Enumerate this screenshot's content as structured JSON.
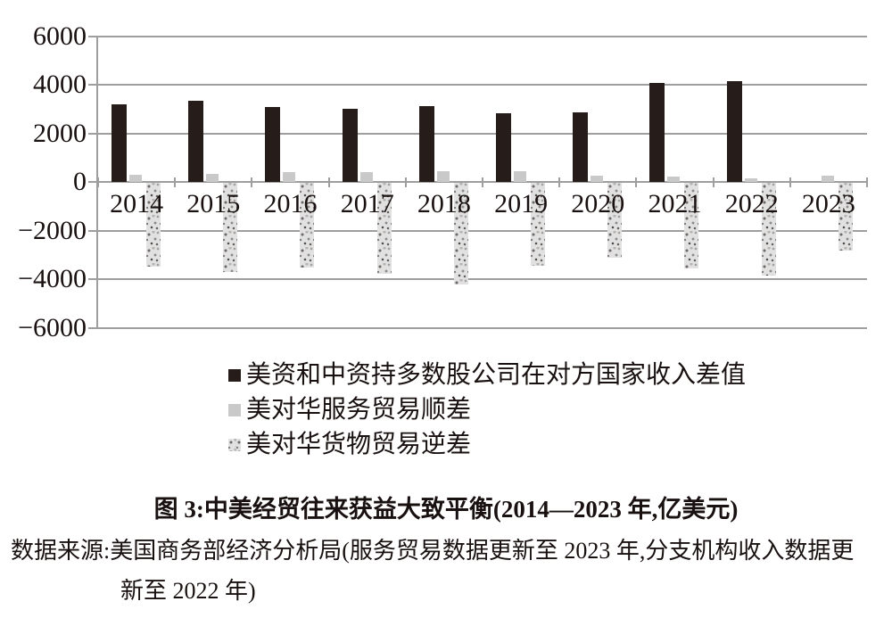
{
  "chart_data": {
    "type": "bar",
    "title": "图 3:中美经贸往来获益大致平衡(2014—2023 年,亿美元)",
    "unit": "亿美元",
    "categories": [
      "2014",
      "2015",
      "2016",
      "2017",
      "2018",
      "2019",
      "2020",
      "2021",
      "2022",
      "2023"
    ],
    "series": [
      {
        "name": "美资和中资持多数股公司在对方国家收入差值",
        "style": "black",
        "values": [
          3200,
          3350,
          3100,
          3000,
          3120,
          2820,
          2860,
          4080,
          4130,
          null
        ]
      },
      {
        "name": "美对华服务贸易顺差",
        "style": "gray",
        "values": [
          280,
          330,
          400,
          390,
          430,
          440,
          260,
          210,
          140,
          250
        ]
      },
      {
        "name": "美对华货物贸易逆差",
        "style": "textured",
        "values": [
          -3440,
          -3670,
          -3470,
          -3750,
          -4180,
          -3430,
          -3100,
          -3530,
          -3830,
          -2790
        ]
      }
    ],
    "ylim": [
      -6000,
      6000
    ],
    "yticks": [
      6000,
      4000,
      2000,
      0,
      -2000,
      -4000,
      -6000
    ],
    "grid": true,
    "legend_position": "below-left"
  },
  "caption": "图 3:中美经贸往来获益大致平衡(2014—2023 年,亿美元)",
  "source": {
    "line1": "数据来源:美国商务部经济分析局(服务贸易数据更新至 2023 年,分支机构收入数据更",
    "line2": "新至 2022 年)"
  },
  "colors": {
    "bar_black": "#261c1a",
    "bar_gray": "#c9c9c9",
    "bar_textured_base": "#e1e1e1",
    "grid": "#9e9e9e",
    "text": "#191010"
  }
}
